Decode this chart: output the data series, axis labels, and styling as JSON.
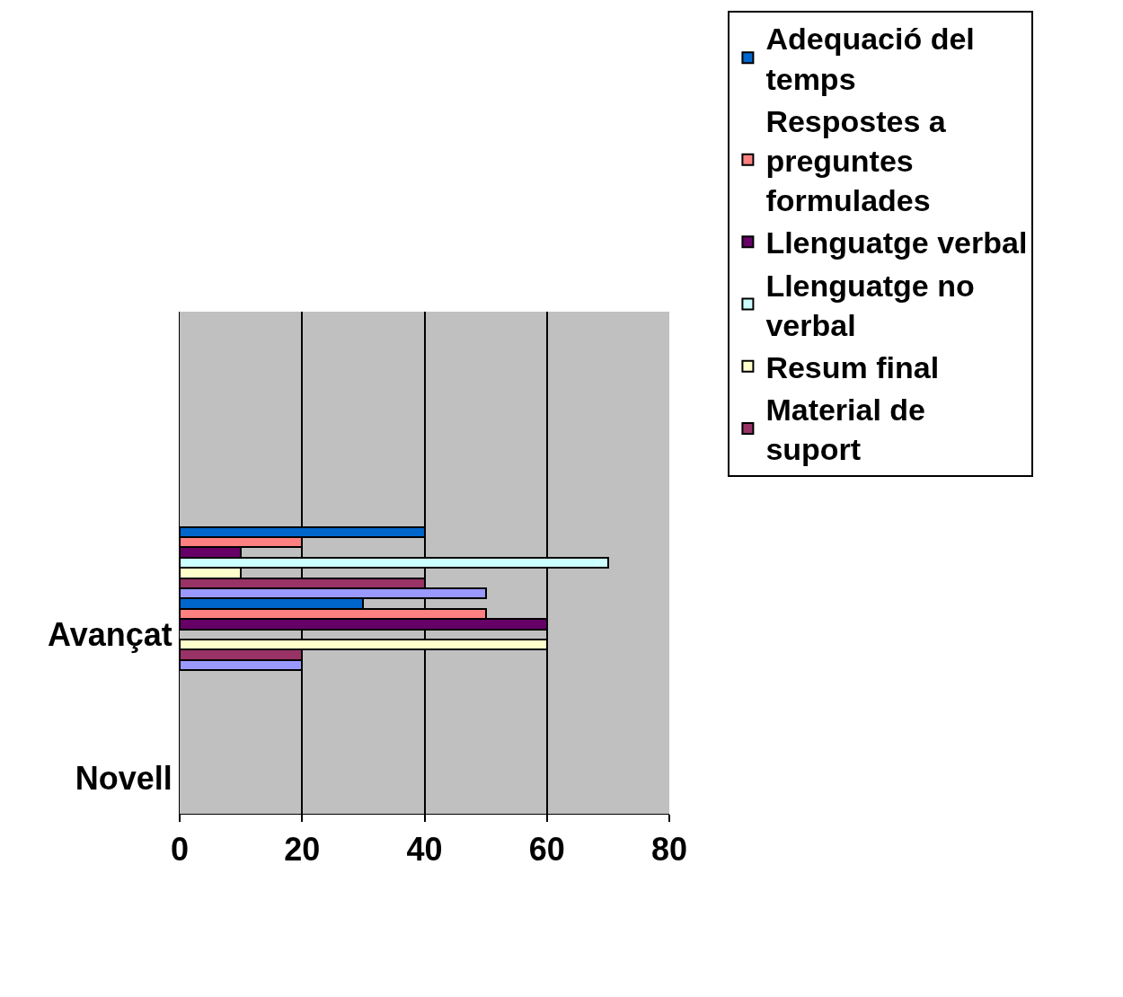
{
  "chart_data": {
    "type": "bar",
    "orientation": "horizontal",
    "categories": [
      null,
      null,
      null,
      null,
      "Avançat",
      null,
      "Novell"
    ],
    "series": [
      {
        "name": "Adequació del temps",
        "color": "#0066cc",
        "values": [
          null,
          null,
          null,
          40,
          30,
          0,
          0
        ]
      },
      {
        "name": "Respostes a preguntes formulades",
        "color": "#ff8080",
        "values": [
          null,
          null,
          null,
          20,
          50,
          0,
          0
        ]
      },
      {
        "name": "Llenguatge verbal",
        "color": "#660066",
        "values": [
          null,
          null,
          null,
          10,
          60,
          0,
          0
        ]
      },
      {
        "name": "Llenguatge no verbal",
        "color": "#ccffff",
        "values": [
          null,
          null,
          null,
          70,
          0,
          0,
          0
        ]
      },
      {
        "name": "Resum final",
        "color": "#ffffcc",
        "values": [
          null,
          null,
          null,
          10,
          60,
          0,
          0
        ]
      },
      {
        "name": "Material de suport",
        "color": "#993366",
        "values": [
          null,
          null,
          null,
          40,
          20,
          0,
          0
        ]
      },
      {
        "color": "#9999ff",
        "values": [
          null,
          null,
          null,
          50,
          20,
          0,
          0
        ]
      }
    ],
    "xlim": [
      0,
      80
    ],
    "xticks": [
      0,
      20,
      40,
      60,
      80
    ],
    "grid": "x",
    "legend": "right"
  }
}
